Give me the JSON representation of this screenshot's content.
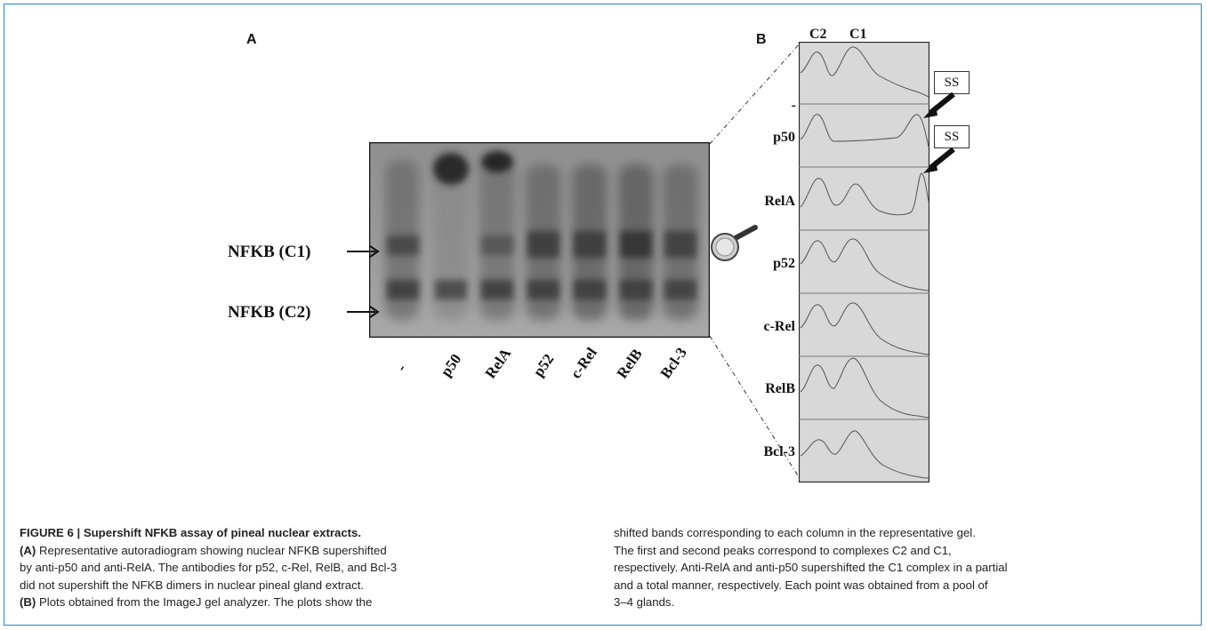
{
  "figure": {
    "panel_a": "A",
    "panel_b": "B",
    "band_labels": [
      "NFKB (C1)",
      "NFKB (C2)"
    ],
    "lane_labels": [
      "-",
      "p50",
      "RelA",
      "p52",
      "c-Rel",
      "RelB",
      "Bcl-3"
    ],
    "peak_labels": [
      "C2",
      "C1"
    ],
    "plot_labels": [
      "-",
      "p50",
      "RelA",
      "p52",
      "c-Rel",
      "RelB",
      "Bcl-3"
    ],
    "ss_labels": [
      "SS",
      "SS"
    ]
  },
  "caption": {
    "title": "FIGURE 6 | Supershift NFKB assay of pineal nuclear extracts.",
    "left_a_tag": "(A)",
    "left_a_text": " Representative autoradiogram showing nuclear NFKB supershifted",
    "left_line2": "by anti-p50 and anti-RelA. The antibodies for p52, c-Rel, RelB, and Bcl-3",
    "left_line3": "did not supershift the NFKB dimers in nuclear pineal gland extract.",
    "left_b_tag": "(B)",
    "left_b_text": " Plots obtained from the ImageJ gel analyzer. The plots show the",
    "right_line1": "shifted bands corresponding to each column in the representative gel.",
    "right_line2": "The first and second peaks correspond to complexes C2 and C1,",
    "right_line3": "respectively. Anti-RelA and anti-p50 supershifted the C1 complex in a partial",
    "right_line4": "and a total manner, respectively. Each point was obtained from a pool of",
    "right_line5": "3–4 glands."
  }
}
